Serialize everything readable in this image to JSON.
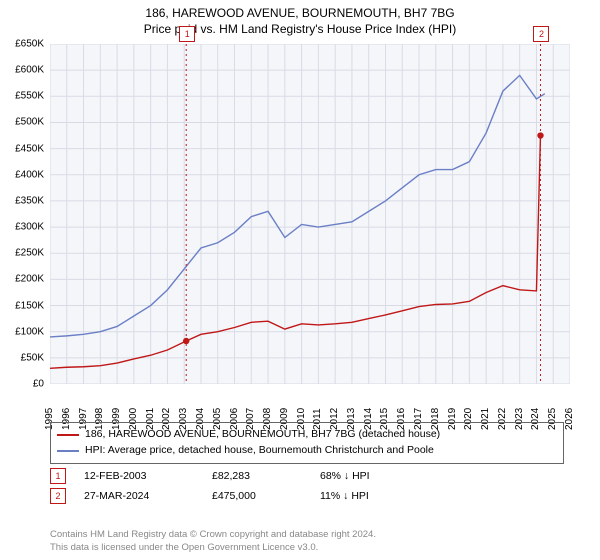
{
  "title_line1": "186, HAREWOOD AVENUE, BOURNEMOUTH, BH7 7BG",
  "title_line2": "Price paid vs. HM Land Registry's House Price Index (HPI)",
  "chart": {
    "type": "line",
    "background_color": "#f5f6fa",
    "grid_color": "#d8dbe6",
    "x_years": [
      1995,
      1996,
      1997,
      1998,
      1999,
      2000,
      2001,
      2002,
      2003,
      2004,
      2005,
      2006,
      2007,
      2008,
      2009,
      2010,
      2011,
      2012,
      2013,
      2014,
      2015,
      2016,
      2017,
      2018,
      2019,
      2020,
      2021,
      2022,
      2023,
      2024,
      2025,
      2026
    ],
    "y_ticks": [
      0,
      50,
      100,
      150,
      200,
      250,
      300,
      350,
      400,
      450,
      500,
      550,
      600,
      650
    ],
    "y_tick_labels": [
      "£0",
      "£50K",
      "£100K",
      "£150K",
      "£200K",
      "£250K",
      "£300K",
      "£350K",
      "£400K",
      "£450K",
      "£500K",
      "£550K",
      "£600K",
      "£650K"
    ],
    "ylim": [
      0,
      650
    ],
    "xlim": [
      1995,
      2026
    ],
    "series": {
      "red": {
        "label": "186, HAREWOOD AVENUE, BOURNEMOUTH, BH7 7BG (detached house)",
        "color": "#c01717",
        "data": [
          [
            1995,
            30
          ],
          [
            1996,
            32
          ],
          [
            1997,
            33
          ],
          [
            1998,
            35
          ],
          [
            1999,
            40
          ],
          [
            2000,
            48
          ],
          [
            2001,
            55
          ],
          [
            2002,
            65
          ],
          [
            2003.12,
            82.283
          ],
          [
            2004,
            95
          ],
          [
            2005,
            100
          ],
          [
            2006,
            108
          ],
          [
            2007,
            118
          ],
          [
            2008,
            120
          ],
          [
            2009,
            105
          ],
          [
            2010,
            115
          ],
          [
            2011,
            113
          ],
          [
            2012,
            115
          ],
          [
            2013,
            118
          ],
          [
            2014,
            125
          ],
          [
            2015,
            132
          ],
          [
            2016,
            140
          ],
          [
            2017,
            148
          ],
          [
            2018,
            152
          ],
          [
            2019,
            153
          ],
          [
            2020,
            158
          ],
          [
            2021,
            175
          ],
          [
            2022,
            188
          ],
          [
            2023,
            180
          ],
          [
            2024,
            178
          ],
          [
            2024.24,
            475
          ]
        ]
      },
      "blue": {
        "label": "HPI: Average price, detached house, Bournemouth Christchurch and Poole",
        "color": "#6a7fc5",
        "data": [
          [
            1995,
            90
          ],
          [
            1996,
            92
          ],
          [
            1997,
            95
          ],
          [
            1998,
            100
          ],
          [
            1999,
            110
          ],
          [
            2000,
            130
          ],
          [
            2001,
            150
          ],
          [
            2002,
            180
          ],
          [
            2003,
            220
          ],
          [
            2004,
            260
          ],
          [
            2005,
            270
          ],
          [
            2006,
            290
          ],
          [
            2007,
            320
          ],
          [
            2008,
            330
          ],
          [
            2009,
            280
          ],
          [
            2010,
            305
          ],
          [
            2011,
            300
          ],
          [
            2012,
            305
          ],
          [
            2013,
            310
          ],
          [
            2014,
            330
          ],
          [
            2015,
            350
          ],
          [
            2016,
            375
          ],
          [
            2017,
            400
          ],
          [
            2018,
            410
          ],
          [
            2019,
            410
          ],
          [
            2020,
            425
          ],
          [
            2021,
            480
          ],
          [
            2022,
            560
          ],
          [
            2023,
            590
          ],
          [
            2024,
            545
          ],
          [
            2024.5,
            555
          ]
        ]
      }
    },
    "sale_markers": [
      {
        "n": "1",
        "year": 2003.12,
        "price": 82.283
      },
      {
        "n": "2",
        "year": 2024.24,
        "price": 475
      }
    ]
  },
  "transactions": [
    {
      "n": "1",
      "date": "12-FEB-2003",
      "price": "£82,283",
      "delta": "68% ↓ HPI"
    },
    {
      "n": "2",
      "date": "27-MAR-2024",
      "price": "£475,000",
      "delta": "11% ↓ HPI"
    }
  ],
  "footer_line1": "Contains HM Land Registry data © Crown copyright and database right 2024.",
  "footer_line2": "This data is licensed under the Open Government Licence v3.0."
}
